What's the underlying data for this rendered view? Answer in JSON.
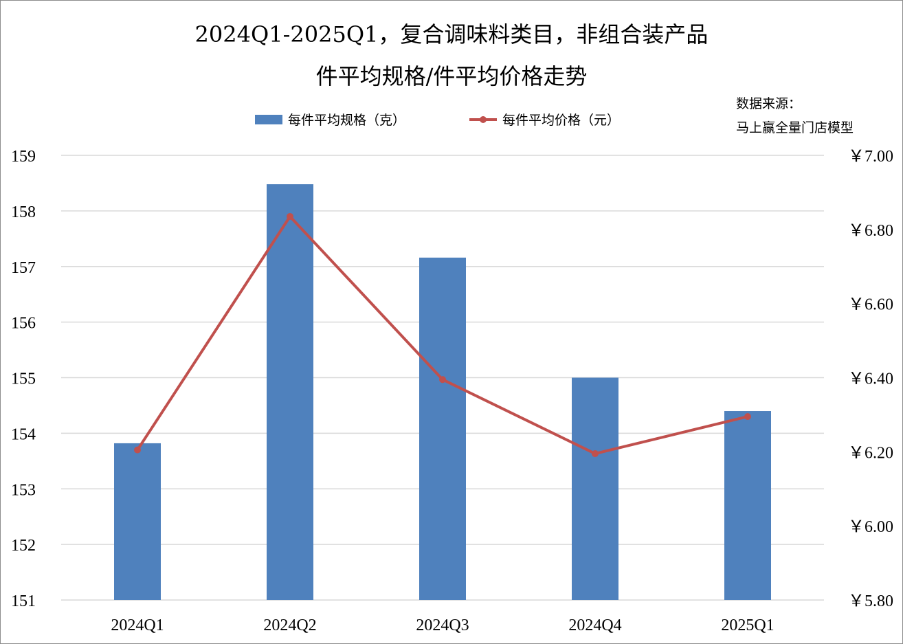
{
  "chart_data": {
    "type": "bar",
    "title_line1": "2024Q1-2025Q1，复合调味料类目，非组合装产品",
    "title_line2": "件平均规格/件平均价格走势",
    "source_line1": "数据来源：",
    "source_line2": "马上赢全量门店模型",
    "categories": [
      "2024Q1",
      "2024Q2",
      "2024Q3",
      "2024Q4",
      "2025Q1"
    ],
    "series": [
      {
        "name": "每件平均规格（克）",
        "kind": "bar",
        "axis": "left",
        "color": "#4f81bd",
        "values": [
          153.82,
          158.48,
          157.16,
          155.0,
          154.4
        ]
      },
      {
        "name": "每件平均价格（元）",
        "kind": "line",
        "axis": "right",
        "color": "#c0504d",
        "values": [
          6.205,
          6.835,
          6.395,
          6.195,
          6.295
        ]
      }
    ],
    "y_left": {
      "min": 151,
      "max": 159,
      "ticks": [
        "159",
        "158",
        "157",
        "156",
        "155",
        "154",
        "153",
        "152",
        "151"
      ]
    },
    "y_right": {
      "min": 5.8,
      "max": 7.0,
      "ticks": [
        "￥7.00",
        "￥6.80",
        "￥6.60",
        "￥6.40",
        "￥6.20",
        "￥6.00",
        "￥5.80"
      ]
    },
    "grid": true,
    "legend_position": "top"
  }
}
